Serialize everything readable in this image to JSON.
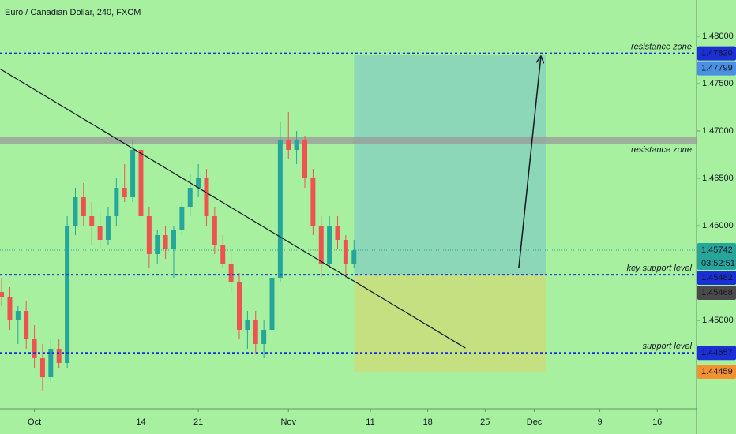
{
  "chart_data": {
    "type": "candlestick",
    "title": "Euro / Canadian Dollar, 240, FXCM",
    "x": [
      -4,
      -3,
      -2,
      -1,
      0,
      1,
      2,
      3,
      4,
      5,
      6,
      7,
      8,
      9,
      10,
      11,
      12,
      13,
      14,
      15,
      16,
      17,
      18,
      19,
      20,
      21,
      22,
      23,
      24,
      25,
      26,
      27,
      28,
      29,
      30,
      31,
      32,
      33,
      34,
      35,
      36,
      37,
      38,
      39
    ],
    "open": [
      1.453,
      1.4525,
      1.45,
      1.451,
      1.448,
      1.446,
      1.444,
      1.447,
      1.4455,
      1.46,
      1.463,
      1.461,
      1.46,
      1.4585,
      1.461,
      1.464,
      1.463,
      1.468,
      1.461,
      1.457,
      1.459,
      1.4575,
      1.4595,
      1.462,
      1.464,
      1.465,
      1.461,
      1.458,
      1.456,
      1.454,
      1.449,
      1.45,
      1.4475,
      1.449,
      1.4545,
      1.469,
      1.468,
      1.469,
      1.465,
      1.46,
      1.456,
      1.46,
      1.4585,
      1.456
    ],
    "high": [
      1.4545,
      1.4535,
      1.4515,
      1.452,
      1.4495,
      1.4475,
      1.448,
      1.448,
      1.461,
      1.464,
      1.4645,
      1.4625,
      1.4615,
      1.462,
      1.465,
      1.4665,
      1.469,
      1.4685,
      1.462,
      1.4595,
      1.46,
      1.46,
      1.4625,
      1.4655,
      1.4665,
      1.466,
      1.462,
      1.459,
      1.4575,
      1.455,
      1.451,
      1.451,
      1.45,
      1.455,
      1.471,
      1.472,
      1.47,
      1.4695,
      1.466,
      1.461,
      1.461,
      1.461,
      1.459,
      1.4585
    ],
    "low": [
      1.4515,
      1.449,
      1.4475,
      1.447,
      1.445,
      1.4425,
      1.4435,
      1.445,
      1.445,
      1.459,
      1.46,
      1.458,
      1.4575,
      1.458,
      1.46,
      1.4625,
      1.4625,
      1.46,
      1.4555,
      1.456,
      1.4565,
      1.4545,
      1.459,
      1.461,
      1.463,
      1.46,
      1.457,
      1.4555,
      1.453,
      1.448,
      1.447,
      1.4465,
      1.446,
      1.4485,
      1.454,
      1.467,
      1.4665,
      1.464,
      1.459,
      1.4545,
      1.4555,
      1.4575,
      1.4545,
      1.4555
    ],
    "close": [
      1.4525,
      1.45,
      1.451,
      1.448,
      1.446,
      1.444,
      1.447,
      1.4455,
      1.46,
      1.463,
      1.461,
      1.46,
      1.4585,
      1.461,
      1.464,
      1.463,
      1.468,
      1.461,
      1.457,
      1.459,
      1.4575,
      1.4595,
      1.462,
      1.464,
      1.465,
      1.461,
      1.458,
      1.456,
      1.454,
      1.449,
      1.45,
      1.4475,
      1.449,
      1.4545,
      1.469,
      1.468,
      1.469,
      1.465,
      1.46,
      1.456,
      1.46,
      1.4585,
      1.456,
      1.4574
    ],
    "up_color": "#26a69a",
    "down_color": "#ef5350",
    "xlim": [
      -4.2,
      80.8
    ],
    "ylim": [
      1.44067,
      1.48383
    ],
    "xticks": [
      {
        "value": 0,
        "label": "Oct"
      },
      {
        "value": 13,
        "label": "14"
      },
      {
        "value": 20,
        "label": "21"
      },
      {
        "value": 31,
        "label": "Nov"
      },
      {
        "value": 41,
        "label": "11"
      },
      {
        "value": 48,
        "label": "18"
      },
      {
        "value": 55,
        "label": "25"
      },
      {
        "value": 61,
        "label": "Dec"
      },
      {
        "value": 69,
        "label": "9"
      },
      {
        "value": 76,
        "label": "16"
      }
    ],
    "yticks": [
      {
        "value": 1.48,
        "label": "1.48000"
      },
      {
        "value": 1.475,
        "label": "1.47500"
      },
      {
        "value": 1.47,
        "label": "1.47000"
      },
      {
        "value": 1.465,
        "label": "1.46500"
      },
      {
        "value": 1.46,
        "label": "1.46000"
      },
      {
        "value": 1.45,
        "label": "1.45000"
      }
    ],
    "levels": [
      {
        "value": 1.4782,
        "label": "resistance zone",
        "color": "#1a2fd6"
      },
      {
        "value": 1.45482,
        "label": "key support level",
        "color": "#1a2fd6"
      },
      {
        "value": 1.44657,
        "label": "support level",
        "color": "#1a2fd6"
      }
    ],
    "zone": {
      "value": 1.469,
      "label": "resistance zone",
      "color": "#9a9a9a"
    },
    "trend_line": {
      "x": [
        -4.24,
        52.6
      ],
      "y": [
        1.47658,
        1.44708
      ],
      "color": "#131722"
    },
    "arrow": {
      "x": [
        59.1,
        61.8
      ],
      "y": [
        1.4555,
        1.47783
      ],
      "color": "#131722"
    },
    "position": {
      "x": [
        39.0,
        62.4
      ],
      "entry": 1.45482,
      "target": 1.47799,
      "stop": 1.44459,
      "profit_color": "rgba(90,170,225,0.35)",
      "loss_color": "rgba(235,205,90,0.45)"
    },
    "current_price": {
      "value": 1.45742,
      "color": "#26a69a"
    },
    "price_labels": [
      {
        "value": 1.4782,
        "label": "1.47820",
        "color": "#1a2fd6",
        "text_color": "#ffffff"
      },
      {
        "value": 1.47799,
        "label": "1.47799",
        "color": "#4a90e2",
        "text_color": "#ffffff"
      },
      {
        "value": 1.45742,
        "label": "1.45742",
        "sublabel": "03:52:51",
        "color": "#26a69a",
        "text_color": "#ffffff"
      },
      {
        "value": 1.45482,
        "label": "1.45482",
        "color": "#1a2fd6",
        "text_color": "#ffffff"
      },
      {
        "value": 1.45468,
        "label": "1.45468",
        "color": "#4a4a4a",
        "text_color": "#ffffff"
      },
      {
        "value": 1.44657,
        "label": "1.44657",
        "color": "#1a2fd6",
        "text_color": "#ffffff"
      },
      {
        "value": 1.44459,
        "label": "1.44459",
        "color": "#f5922f",
        "text_color": "#ffffff"
      }
    ]
  }
}
